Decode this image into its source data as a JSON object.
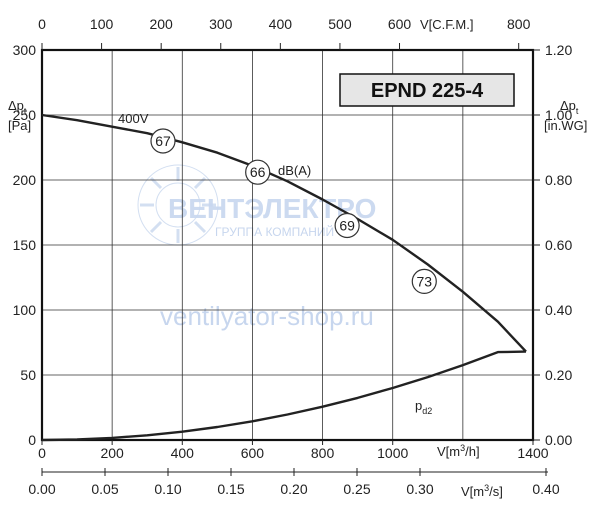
{
  "chart_data": {
    "type": "line",
    "title": "EPND 225-4",
    "xlabel_bottom": "V[m³/h]",
    "xlabel_bottom2": "V[m³/s]",
    "xlabel_top": "V[C.F.M.]",
    "ylabel_left": "Δpt [Pa]",
    "ylabel_right": "Δpt [in.WG]",
    "xlim": [
      0,
      1400
    ],
    "ylim": [
      0,
      300
    ],
    "x_ticks": [
      "0",
      "200",
      "400",
      "600",
      "800",
      "1000",
      "1400"
    ],
    "x2_ticks": [
      "0.00",
      "0.05",
      "0.10",
      "0.15",
      "0.20",
      "0.25",
      "0.30",
      "0.40"
    ],
    "top_ticks": [
      "0",
      "100",
      "200",
      "300",
      "400",
      "500",
      "600",
      "800"
    ],
    "y_ticks": [
      "0",
      "50",
      "100",
      "150",
      "200",
      "250",
      "300"
    ],
    "y_right_ticks": [
      "0.00",
      "0.20",
      "0.40",
      "0.60",
      "0.80",
      "1.00",
      "1.20"
    ],
    "series": [
      {
        "name": "400V",
        "x": [
          0,
          100,
          200,
          300,
          400,
          500,
          600,
          700,
          800,
          900,
          1000,
          1100,
          1200,
          1300,
          1380
        ],
        "y": [
          250,
          246,
          241,
          236,
          229,
          221,
          211,
          199,
          185,
          170,
          154,
          135,
          114,
          91,
          68
        ]
      },
      {
        "name": "pd2",
        "x": [
          0,
          100,
          200,
          300,
          400,
          500,
          600,
          700,
          800,
          900,
          1000,
          1100,
          1200,
          1300,
          1380
        ],
        "y": [
          0,
          0.4,
          1.6,
          3.6,
          6.4,
          10,
          14.4,
          19.6,
          25.6,
          32.4,
          40,
          48.4,
          57.6,
          67.6,
          68
        ]
      }
    ],
    "sound_markers": [
      {
        "label": "67",
        "x": 345,
        "y": 230
      },
      {
        "label": "66",
        "x": 615,
        "y": 206
      },
      {
        "label": "69",
        "x": 870,
        "y": 165
      },
      {
        "label": "73",
        "x": 1090,
        "y": 122
      }
    ],
    "annotations": {
      "series_label_400v": "400V",
      "sound_unit": "dB(A)",
      "pd2_label": "pd2"
    },
    "grid": true
  },
  "watermark": {
    "brand": "ВЕНТЭЛЕКТРО",
    "tagline": "ГРУППА КОМПАНИЙ",
    "site": "ventilyator-shop.ru"
  }
}
